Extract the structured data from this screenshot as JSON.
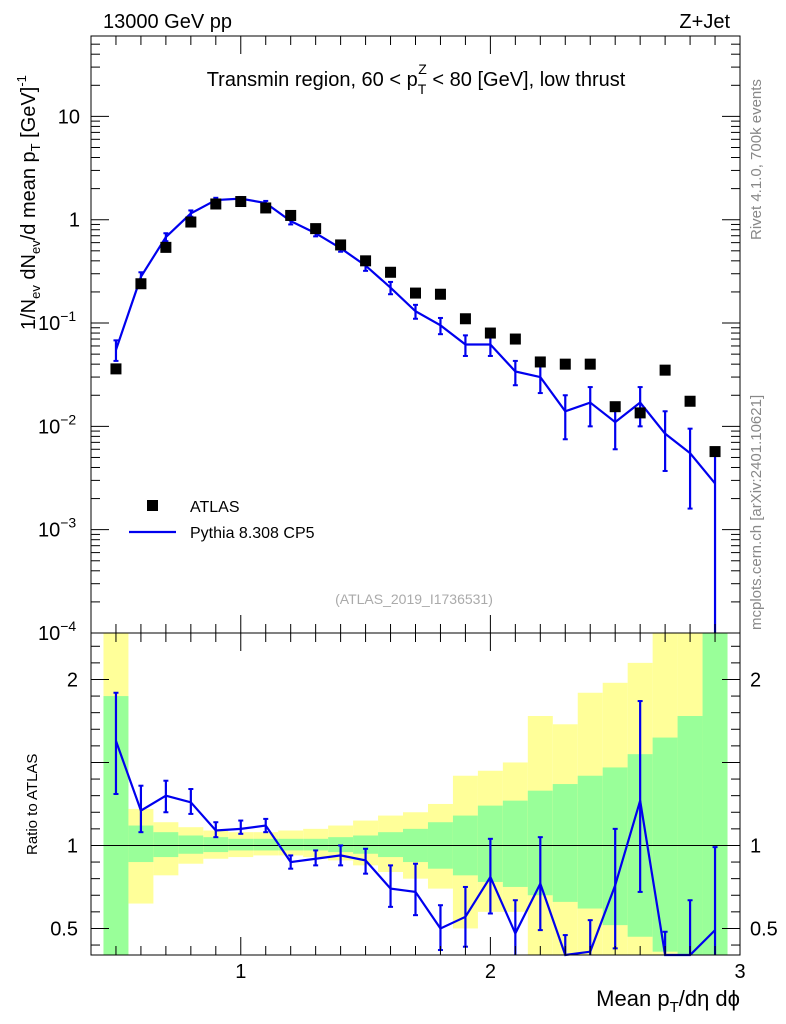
{
  "header": {
    "left": "13000 GeV pp",
    "right": "Z+Jet"
  },
  "side_labels": {
    "top": "Rivet 4.1.0,  700k events",
    "bottom": "mcplots.cern.ch [arXiv:2401.10621]"
  },
  "colors": {
    "data": "#000000",
    "mc": "#0000ee",
    "band_inner": "#99ff99",
    "band_outer": "#ffff99",
    "ref_line": "#000000"
  },
  "chart_data": [
    {
      "type": "scatter",
      "panel": "main",
      "title_parts": [
        "Transmin region, 60 < p",
        "T",
        "Z",
        " < 80 [GeV], low thrust"
      ],
      "ylabel_parts": [
        "1/N",
        "ev",
        " dN",
        "ev",
        "/d mean p",
        "T",
        " [GeV]",
        "-1"
      ],
      "xlabel_parts": [
        "Mean p",
        "T",
        "/dη dϕ"
      ],
      "yscale": "log",
      "ylim": [
        0.0001,
        60
      ],
      "xlim": [
        0.4,
        3.0
      ],
      "yticks": [
        {
          "value": 10,
          "label": "10",
          "exp": ""
        },
        {
          "value": 1,
          "label": "1",
          "exp": ""
        },
        {
          "value": 0.1,
          "label": "10",
          "exp": "−1"
        },
        {
          "value": 0.01,
          "label": "10",
          "exp": "−2"
        },
        {
          "value": 0.001,
          "label": "10",
          "exp": "−3"
        },
        {
          "value": 0.0001,
          "label": "10",
          "exp": "−4"
        }
      ],
      "watermark": "(ATLAS_2019_I1736531)",
      "legend": {
        "position": "lower-left",
        "entries": [
          "ATLAS",
          "Pythia 8.308 CP5"
        ]
      },
      "x": [
        0.5,
        0.6,
        0.7,
        0.8,
        0.9,
        1.0,
        1.1,
        1.2,
        1.3,
        1.4,
        1.5,
        1.6,
        1.7,
        1.8,
        1.9,
        2.0,
        2.1,
        2.2,
        2.3,
        2.4,
        2.5,
        2.6,
        2.7,
        2.8,
        2.9
      ],
      "series": [
        {
          "name": "ATLAS",
          "values": [
            0.036,
            0.24,
            0.54,
            0.95,
            1.42,
            1.5,
            1.3,
            1.1,
            0.82,
            0.57,
            0.4,
            0.31,
            0.195,
            0.19,
            0.11,
            0.08,
            0.07,
            0.042,
            0.04,
            0.04,
            0.0155,
            0.0135,
            0.035,
            0.0175,
            0.0057
          ]
        },
        {
          "name": "Pythia 8.308 CP5",
          "values": [
            0.055,
            0.28,
            0.68,
            1.15,
            1.55,
            1.6,
            1.45,
            0.97,
            0.74,
            0.53,
            0.36,
            0.22,
            0.13,
            0.095,
            0.062,
            0.062,
            0.034,
            0.03,
            0.014,
            0.017,
            0.011,
            0.017,
            0.0085,
            0.0055,
            0.0028
          ],
          "err_low": [
            0.043,
            0.25,
            0.62,
            1.07,
            1.47,
            1.55,
            1.38,
            0.9,
            0.69,
            0.49,
            0.32,
            0.19,
            0.11,
            0.078,
            0.048,
            0.048,
            0.025,
            0.021,
            0.0075,
            0.01,
            0.006,
            0.01,
            0.0037,
            0.0016,
            8e-05
          ],
          "err_high": [
            0.068,
            0.31,
            0.74,
            1.23,
            1.63,
            1.66,
            1.52,
            1.04,
            0.79,
            0.57,
            0.4,
            0.25,
            0.15,
            0.112,
            0.076,
            0.077,
            0.043,
            0.04,
            0.02,
            0.024,
            0.016,
            0.024,
            0.014,
            0.0095,
            0.0055
          ]
        }
      ]
    },
    {
      "type": "line",
      "panel": "ratio",
      "ylabel": "Ratio to ATLAS",
      "ylim": [
        0.34,
        2.28
      ],
      "xlim": [
        0.4,
        3.0
      ],
      "yticks": [
        {
          "value": 2,
          "label": "2"
        },
        {
          "value": 1,
          "label": "1"
        },
        {
          "value": 0.5,
          "label": "0.5"
        }
      ],
      "xticks": [
        {
          "value": 1,
          "label": "1"
        },
        {
          "value": 2,
          "label": "2"
        },
        {
          "value": 3,
          "label": "3"
        }
      ],
      "x": [
        0.5,
        0.6,
        0.7,
        0.8,
        0.9,
        1.0,
        1.1,
        1.2,
        1.3,
        1.4,
        1.5,
        1.6,
        1.7,
        1.8,
        1.9,
        2.0,
        2.1,
        2.2,
        2.3,
        2.4,
        2.5,
        2.6,
        2.7,
        2.8,
        2.9
      ],
      "bins": [
        0.45,
        0.55,
        0.65,
        0.75,
        0.85,
        0.95,
        1.05,
        1.15,
        1.25,
        1.35,
        1.45,
        1.55,
        1.65,
        1.75,
        1.85,
        1.95,
        2.05,
        2.15,
        2.25,
        2.35,
        2.45,
        2.55,
        2.65,
        2.75,
        2.85,
        2.95
      ],
      "band_inner": {
        "low": [
          0.3,
          0.9,
          0.93,
          0.95,
          0.96,
          0.97,
          0.97,
          0.97,
          0.97,
          0.96,
          0.95,
          0.93,
          0.9,
          0.86,
          0.82,
          0.78,
          0.75,
          0.7,
          0.66,
          0.62,
          0.52,
          0.45,
          0.36,
          0.3,
          0.2
        ],
        "high": [
          1.9,
          1.12,
          1.08,
          1.06,
          1.05,
          1.04,
          1.04,
          1.04,
          1.04,
          1.05,
          1.06,
          1.08,
          1.1,
          1.14,
          1.18,
          1.24,
          1.27,
          1.33,
          1.37,
          1.42,
          1.47,
          1.55,
          1.65,
          1.78,
          2.3
        ]
      },
      "band_outer": {
        "low": [
          0.3,
          0.65,
          0.82,
          0.89,
          0.92,
          0.93,
          0.94,
          0.94,
          0.93,
          0.91,
          0.88,
          0.84,
          0.8,
          0.74,
          0.5,
          0.6,
          0.6,
          0.3,
          0.3,
          0.3,
          0.3,
          0.3,
          0.3,
          0.3,
          0.3
        ],
        "high": [
          2.3,
          1.22,
          1.14,
          1.11,
          1.09,
          1.08,
          1.08,
          1.09,
          1.1,
          1.12,
          1.15,
          1.18,
          1.2,
          1.25,
          1.42,
          1.45,
          1.5,
          1.78,
          1.73,
          1.92,
          1.98,
          2.1,
          2.3,
          2.3,
          2.3
        ]
      },
      "series": [
        {
          "name": "Pythia 8.308 CP5 / ATLAS",
          "values": [
            1.63,
            1.21,
            1.3,
            1.26,
            1.09,
            1.1,
            1.12,
            0.9,
            0.92,
            0.94,
            0.91,
            0.74,
            0.72,
            0.5,
            0.57,
            0.81,
            0.47,
            0.77,
            0.27,
            0.36,
            0.76,
            1.27,
            0.25,
            0.3,
            0.49
          ],
          "err_low": [
            1.31,
            1.08,
            1.2,
            1.19,
            1.05,
            1.07,
            1.08,
            0.86,
            0.88,
            0.88,
            0.83,
            0.63,
            0.58,
            0.37,
            0.39,
            0.59,
            0.3,
            0.49,
            0.13,
            0.23,
            0.38,
            0.72,
            0.1,
            0.1,
            0.02
          ],
          "err_high": [
            1.92,
            1.36,
            1.39,
            1.34,
            1.14,
            1.15,
            1.16,
            0.94,
            0.97,
            1.0,
            0.98,
            0.88,
            0.89,
            0.64,
            0.75,
            1.04,
            0.67,
            1.05,
            0.46,
            0.55,
            1.1,
            1.87,
            0.48,
            0.67,
            0.99
          ]
        }
      ]
    }
  ]
}
